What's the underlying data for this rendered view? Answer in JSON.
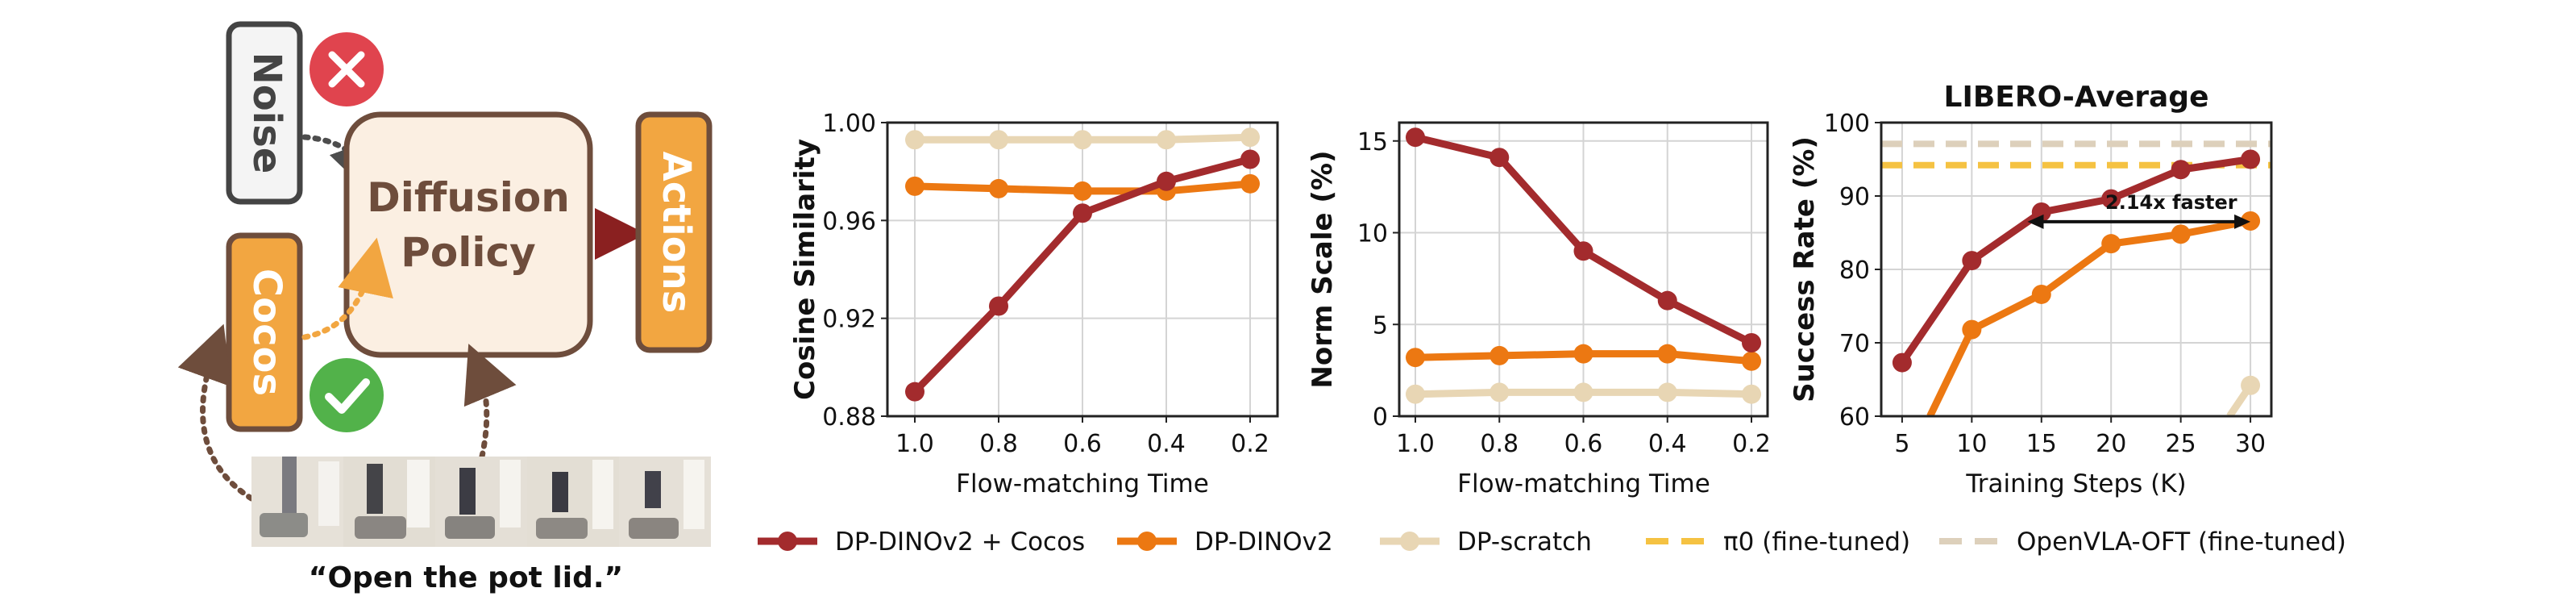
{
  "diagram": {
    "noise_label": "Noise",
    "cocos_label": "Cocos",
    "policy_label_line1": "Diffusion",
    "policy_label_line2": "Policy",
    "actions_label": "Actions",
    "instruction": "“Open the pot lid.”",
    "colors": {
      "box_fill": "#f2a641",
      "box_border": "#6e4d3c",
      "policy_fill": "#fbefe2",
      "text_brown": "#6e4d3c",
      "cross": "#e0444e",
      "check": "#52b24a"
    }
  },
  "chart_data": [
    {
      "type": "line",
      "title": "",
      "xlabel": "Flow-matching Time",
      "ylabel": "Cosine Similarity",
      "categories": [
        "1.0",
        "0.8",
        "0.6",
        "0.4",
        "0.2"
      ],
      "ylim": [
        0.88,
        1.0
      ],
      "yticks": [
        "0.88",
        "0.92",
        "0.96",
        "1.00"
      ],
      "grid": true,
      "series": [
        {
          "name": "DP-DINOv2 + Cocos",
          "values": [
            0.89,
            0.925,
            0.963,
            0.976,
            0.985
          ]
        },
        {
          "name": "DP-DINOv2",
          "values": [
            0.974,
            0.973,
            0.972,
            0.972,
            0.975
          ]
        },
        {
          "name": "DP-scratch",
          "values": [
            0.993,
            0.993,
            0.993,
            0.993,
            0.994
          ]
        }
      ]
    },
    {
      "type": "line",
      "title": "",
      "xlabel": "Flow-matching Time",
      "ylabel": "Norm Scale (%)",
      "categories": [
        "1.0",
        "0.8",
        "0.6",
        "0.4",
        "0.2"
      ],
      "ylim": [
        0,
        16
      ],
      "yticks": [
        "0",
        "5",
        "10",
        "15"
      ],
      "grid": true,
      "series": [
        {
          "name": "DP-DINOv2 + Cocos",
          "values": [
            15.2,
            14.1,
            9.0,
            6.3,
            4.0
          ]
        },
        {
          "name": "DP-DINOv2",
          "values": [
            3.2,
            3.3,
            3.4,
            3.4,
            3.0
          ]
        },
        {
          "name": "DP-scratch",
          "values": [
            1.2,
            1.3,
            1.3,
            1.3,
            1.2
          ]
        }
      ]
    },
    {
      "type": "line",
      "title": "LIBERO-Average",
      "xlabel": "Training Steps (K)",
      "ylabel": "Success Rate (%)",
      "x": [
        5,
        10,
        15,
        20,
        25,
        30
      ],
      "xlim": [
        3.5,
        31.5
      ],
      "ylim": [
        60,
        100
      ],
      "yticks": [
        "60",
        "70",
        "80",
        "90",
        "100"
      ],
      "grid": true,
      "annotation": {
        "text": "2.14x faster",
        "from_x": 14,
        "to_x": 30,
        "y": 86.5
      },
      "series": [
        {
          "name": "DP-DINOv2 + Cocos",
          "x": [
            5,
            10,
            15,
            20,
            25,
            30
          ],
          "values": [
            67.3,
            81.2,
            87.8,
            89.6,
            93.6,
            95.0
          ]
        },
        {
          "name": "DP-DINOv2",
          "x": [
            7,
            10,
            15,
            20,
            25,
            30
          ],
          "values": [
            60.0,
            71.8,
            76.6,
            83.5,
            84.8,
            86.6
          ]
        },
        {
          "name": "DP-scratch",
          "x": [
            28.5,
            30
          ],
          "values": [
            60.0,
            64.2
          ]
        },
        {
          "name": "π0 (fine-tuned)",
          "hline": 94.2
        },
        {
          "name": "OpenVLA-OFT (fine-tuned)",
          "hline": 97.1
        }
      ]
    }
  ],
  "legend": [
    {
      "label": "DP-DINOv2 + Cocos",
      "color": "#a32b2d",
      "style": "line-marker"
    },
    {
      "label": "DP-DINOv2",
      "color": "#ec7812",
      "style": "line-marker"
    },
    {
      "label": "DP-scratch",
      "color": "#e8d6b4",
      "style": "line-marker"
    },
    {
      "label": "π0 (fine-tuned)",
      "color": "#f5c242",
      "style": "dashed"
    },
    {
      "label": "OpenVLA-OFT (fine-tuned)",
      "color": "#ddd0bb",
      "style": "dashed"
    }
  ],
  "colors": {
    "cocos": "#a32b2d",
    "dinov2": "#ec7812",
    "scratch": "#e8d6b4",
    "pi0": "#f5c242",
    "openvla": "#ddd0bb",
    "grid": "#d4d4d4",
    "axis": "#222222"
  }
}
